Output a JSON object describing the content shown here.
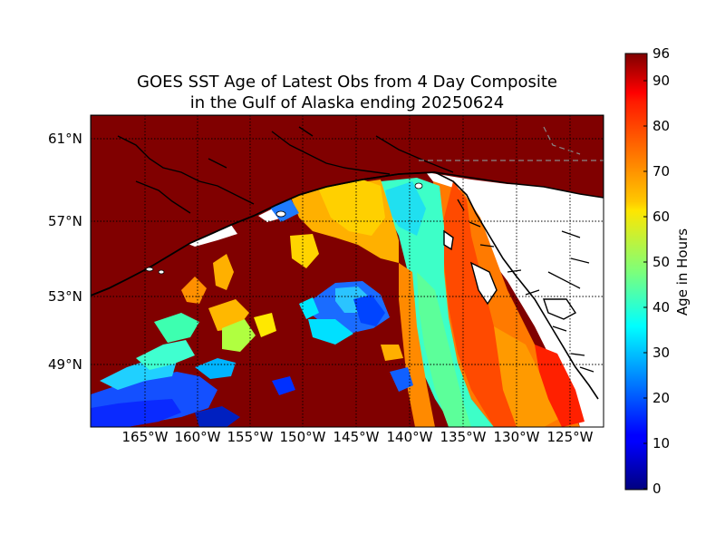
{
  "title_line1": "GOES SST Age of Latest Obs from 4 Day Composite",
  "title_line2": "in the Gulf of Alaska ending 20250624",
  "lat_labels": [
    "61°N",
    "57°N",
    "53°N",
    "49°N"
  ],
  "lon_labels": [
    "165°W",
    "160°W",
    "155°W",
    "150°W",
    "145°W",
    "140°W",
    "135°W",
    "130°W",
    "125°W"
  ],
  "colorbar": {
    "label": "Age in Hours",
    "ticks": [
      "96",
      "90",
      "80",
      "70",
      "60",
      "50",
      "40",
      "30",
      "20",
      "10",
      "0"
    ],
    "min": 0,
    "max": 96,
    "colormap": "jet"
  },
  "colors": {
    "land_fill": "#800000",
    "no_data": "#ffffff",
    "coastline": "#000000",
    "grid": "#000000"
  }
}
